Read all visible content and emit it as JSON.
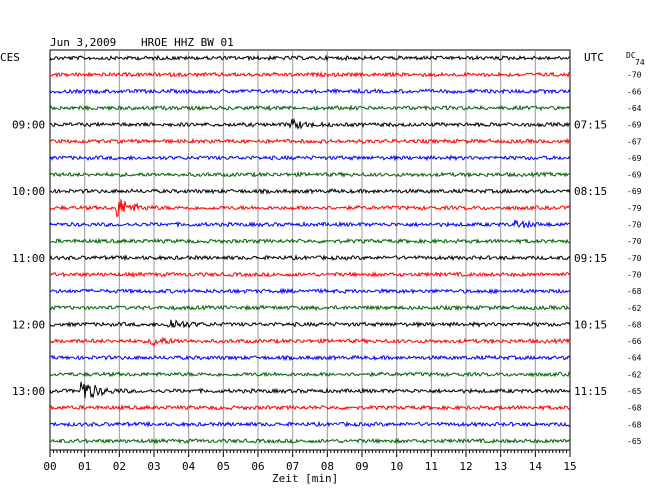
{
  "header": {
    "date": "Jun 3,2009",
    "station": "HROE HHZ BW 01",
    "left_tz": "CES",
    "right_tz": "UTC",
    "dc_label": "DC"
  },
  "chart_data": {
    "type": "line",
    "xlabel": "Zeit [min]",
    "xlim": [
      0,
      15
    ],
    "x_ticks": [
      "00",
      "01",
      "02",
      "03",
      "04",
      "05",
      "06",
      "07",
      "08",
      "09",
      "10",
      "11",
      "12",
      "13",
      "14",
      "15"
    ],
    "trace_colors": [
      "#000000",
      "#ff0000",
      "#0000ff",
      "#006400"
    ],
    "left_time_labels": [
      {
        "trace": 4,
        "label": "09:00"
      },
      {
        "trace": 8,
        "label": "10:00"
      },
      {
        "trace": 12,
        "label": "11:00"
      },
      {
        "trace": 16,
        "label": "12:00"
      },
      {
        "trace": 20,
        "label": "13:00"
      }
    ],
    "right_time_labels": [
      {
        "trace": 4,
        "label": "07:15"
      },
      {
        "trace": 8,
        "label": "08:15"
      },
      {
        "trace": 12,
        "label": "09:15"
      },
      {
        "trace": 16,
        "label": "10:15"
      },
      {
        "trace": 20,
        "label": "11:15"
      }
    ],
    "dc_offsets": [
      "74",
      "-70",
      "-66",
      "-64",
      "-69",
      "-67",
      "-69",
      "-69",
      "-69",
      "-79",
      "-70",
      "-70",
      "-70",
      "-70",
      "-68",
      "-62",
      "-68",
      "-66",
      "-64",
      "-62",
      "-65",
      "-68",
      "-68",
      "-65"
    ],
    "events": [
      {
        "trace": 9,
        "minute": 2.0,
        "amplitude": 9
      },
      {
        "trace": 20,
        "minute": 1.0,
        "amplitude": 10
      },
      {
        "trace": 16,
        "minute": 3.5,
        "amplitude": 5
      },
      {
        "trace": 17,
        "minute": 3.0,
        "amplitude": 4
      },
      {
        "trace": 4,
        "minute": 7.0,
        "amplitude": 4
      },
      {
        "trace": 10,
        "minute": 13.5,
        "amplitude": 3
      }
    ]
  }
}
